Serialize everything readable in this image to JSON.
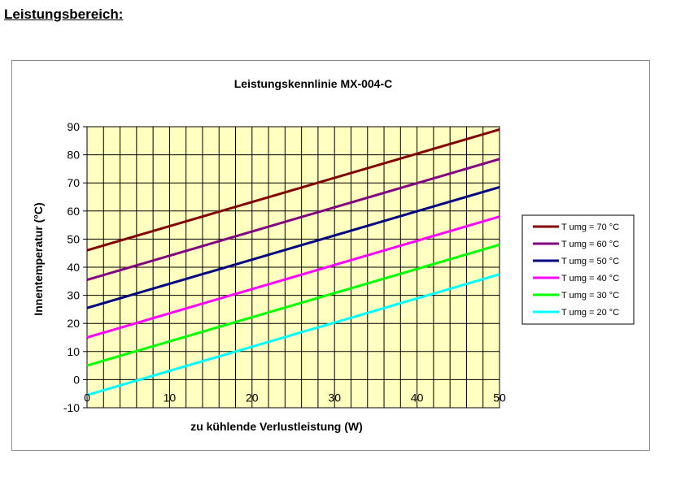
{
  "page": {
    "heading": "Leistungsbereich:"
  },
  "chart_data": {
    "type": "line",
    "title": "Leistungskennlinie  MX-004-C",
    "xlabel": "zu kühlende Verlustleistung (W)",
    "ylabel": "Innentemperatur (°C)",
    "xlim": [
      0,
      50
    ],
    "ylim": [
      -10,
      90
    ],
    "x_ticks": [
      0,
      10,
      20,
      30,
      40,
      50
    ],
    "y_ticks": [
      -10,
      0,
      10,
      20,
      30,
      40,
      50,
      60,
      70,
      80,
      90
    ],
    "grid": true,
    "plot_background": "#ffffc0",
    "legend_position": "right",
    "series": [
      {
        "name": "T umg = 70 °C",
        "color": "#800000",
        "x": [
          0,
          50
        ],
        "y": [
          46,
          89
        ]
      },
      {
        "name": "T umg = 60 °C",
        "color": "#800080",
        "x": [
          0,
          50
        ],
        "y": [
          35.5,
          78.5
        ]
      },
      {
        "name": "T umg = 50 °C",
        "color": "#000080",
        "x": [
          0,
          50
        ],
        "y": [
          25.5,
          68.5
        ]
      },
      {
        "name": "T umg = 40 °C",
        "color": "#ff00ff",
        "x": [
          0,
          50
        ],
        "y": [
          15,
          58
        ]
      },
      {
        "name": "T umg = 30 °C",
        "color": "#00ff00",
        "x": [
          0,
          50
        ],
        "y": [
          5,
          48
        ]
      },
      {
        "name": "T umg = 20 °C",
        "color": "#00ffff",
        "x": [
          0,
          50
        ],
        "y": [
          -5.5,
          37.5
        ]
      }
    ]
  }
}
